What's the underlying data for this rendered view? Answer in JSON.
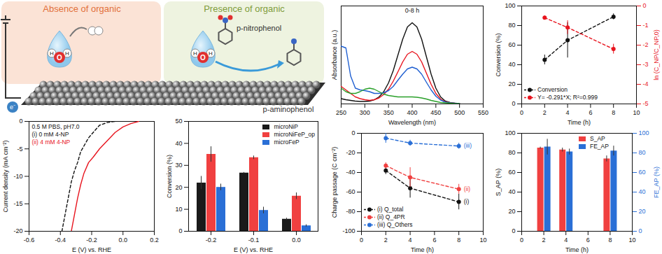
{
  "diagram": {
    "panels": [
      {
        "title": "Absence of organic",
        "color": "#e2703a"
      },
      {
        "title": "Presence of organic",
        "color": "#7f9c3c",
        "reactant": "p-nitrophenol",
        "product": "p-aminophenol"
      }
    ],
    "atoms": [
      "O",
      "H",
      "H"
    ],
    "electron": "e⁻"
  },
  "chart_data": [
    {
      "type": "line",
      "x_label": "E (V) vs. RHE",
      "y_label": "Current density (mA cm⁻²)",
      "annotations": [
        "0.5 M PBS, pH7.0"
      ],
      "x": [
        -0.39,
        -0.37,
        -0.35,
        -0.33,
        -0.31,
        -0.29,
        -0.27,
        -0.25,
        -0.22,
        -0.19,
        -0.15,
        -0.1,
        -0.05,
        0,
        0.05,
        0.1
      ],
      "series": [
        {
          "name": "(i) 0 mM 4-NP",
          "color": "#111111",
          "line_style": "dashed",
          "values": [
            -20,
            -17,
            -14,
            -11,
            -9,
            -7.5,
            -5.5,
            -4.5,
            -3,
            -2,
            -0.7,
            -0.2,
            0,
            null,
            null,
            null
          ]
        },
        {
          "name": "(ii) 4 mM 4-NP",
          "color": "#e8141e",
          "line_style": "solid",
          "values": [
            null,
            null,
            null,
            -20,
            -17,
            -14,
            -11.5,
            -9.5,
            -7.5,
            -6.5,
            -5,
            -3.5,
            -2,
            -1,
            -0.4,
            0
          ]
        }
      ],
      "xlim": [
        -0.6,
        0.2
      ],
      "xticks": [
        -0.6,
        -0.4,
        -0.2,
        {
          "value": 0,
          "label": "0.0"
        },
        0.2
      ],
      "ylim": [
        -20,
        0
      ],
      "yticks": [
        -20,
        -15,
        -10,
        -5,
        0
      ]
    },
    {
      "type": "bar",
      "x_label": "E (V) vs. RHE",
      "y_label": "Conversion (%)",
      "categories": [
        "-0.2",
        "-0.1",
        "0.0"
      ],
      "series": [
        {
          "name": "microNiP",
          "color": "#1a1a1a",
          "values": [
            22,
            26.5,
            5.5
          ],
          "errors": [
            3,
            0.3,
            0.5
          ]
        },
        {
          "name": "microNiFeP_op",
          "color": "#f04040",
          "values": [
            35,
            33.5,
            16
          ],
          "errors": [
            3.5,
            0.8,
            1.5
          ]
        },
        {
          "name": "microFeP",
          "color": "#2a6fd6",
          "values": [
            20,
            9.5,
            2.5
          ],
          "errors": [
            1.5,
            1.5,
            0.5
          ]
        }
      ],
      "ylim": [
        0,
        50
      ],
      "yticks": [
        0,
        10,
        20,
        30,
        40,
        50
      ],
      "legend": "top-right"
    },
    {
      "type": "line",
      "x_label": "Wavelength (nm)",
      "y_label": "Absorbance (a.u.)",
      "annotations": [
        "0-8 h"
      ],
      "x": [
        250,
        260,
        270,
        280,
        290,
        300,
        310,
        320,
        330,
        340,
        350,
        360,
        370,
        380,
        390,
        400,
        410,
        420,
        430,
        440,
        450,
        460,
        470,
        480,
        490,
        500
      ],
      "series": [
        {
          "color": "#111111",
          "values": [
            0.15,
            0.12,
            0.1,
            0.08,
            0.07,
            0.07,
            0.08,
            0.12,
            0.2,
            0.35,
            0.6,
            0.95,
            1.4,
            1.85,
            2.2,
            2.32,
            2.2,
            1.85,
            1.35,
            0.85,
            0.45,
            0.2,
            0.08,
            0.04,
            0.02,
            0.01
          ]
        },
        {
          "color": "#e8141e",
          "values": [
            0.5,
            0.4,
            0.3,
            0.2,
            0.15,
            0.12,
            0.1,
            0.12,
            0.17,
            0.27,
            0.42,
            0.65,
            0.92,
            1.2,
            1.42,
            1.5,
            1.42,
            1.2,
            0.88,
            0.56,
            0.3,
            0.14,
            0.06,
            0.03,
            0.02,
            0.01
          ]
        },
        {
          "color": "#1f5fd1",
          "values": [
            1.65,
            1.6,
            0.8,
            0.45,
            0.4,
            0.38,
            0.35,
            0.3,
            0.3,
            0.32,
            0.38,
            0.5,
            0.68,
            0.85,
            1.0,
            1.05,
            1.0,
            0.85,
            0.62,
            0.4,
            0.22,
            0.11,
            0.05,
            0.03,
            0.02,
            0.01
          ]
        },
        {
          "color": "#2aa02a",
          "values": [
            0.45,
            0.35,
            0.3,
            0.3,
            0.35,
            0.42,
            0.45,
            0.42,
            0.35,
            0.28,
            0.24,
            0.22,
            0.2,
            0.2,
            0.2,
            0.2,
            0.19,
            0.17,
            0.14,
            0.1,
            0.07,
            0.04,
            0.03,
            0.02,
            0.01,
            0.01
          ]
        }
      ],
      "xlim": [
        250,
        550
      ],
      "xticks": [
        250,
        300,
        350,
        400,
        450,
        500,
        550
      ],
      "ylim": [
        0,
        2.8
      ],
      "tick_labels": "x"
    },
    {
      "type": "line",
      "x_label": "Time (h)",
      "y_label": "Conversion (%)",
      "y2_label": "ln (C_NP/C_NP,0)",
      "x": [
        2,
        4,
        8
      ],
      "series": [
        {
          "name": "Conversion",
          "color": "#111111",
          "marker": "circle",
          "line_style": "dashed",
          "values": [
            45,
            65,
            89
          ],
          "errors": [
            5,
            18,
            3
          ]
        },
        {
          "name": "Y= -0.291*X; R²=0.999",
          "color": "#e8141e",
          "marker": "circle",
          "line_style": "dashed",
          "axis": "y2",
          "values": [
            -0.6,
            -1.1,
            -2.2
          ],
          "errors": [
            0.1,
            0.35,
            0.25
          ]
        }
      ],
      "xlim": [
        0,
        10
      ],
      "xticks": [
        0,
        2,
        4,
        6,
        8,
        10
      ],
      "ylim": [
        0,
        100
      ],
      "yticks": [
        0,
        20,
        40,
        60,
        80,
        100
      ],
      "y2lim": [
        -5,
        0
      ],
      "y2ticks": [
        -5,
        -4,
        -3,
        -2,
        -1,
        0
      ],
      "legend": "bottom-left"
    },
    {
      "type": "line",
      "x_label": "Time (h)",
      "y_label": "Charge passage (C cm⁻²)",
      "annotations": [
        "(i)",
        "(ii)",
        "(iii)"
      ],
      "x": [
        2,
        4,
        8
      ],
      "series": [
        {
          "name": "(i) Q_total",
          "color": "#111111",
          "marker": "circle",
          "line_style": "dashed",
          "values": [
            -38,
            -56,
            -70
          ],
          "errors": [
            4,
            10,
            8
          ]
        },
        {
          "name": "(ii) Q_4PR",
          "color": "#f04040",
          "marker": "circle",
          "line_style": "dashed",
          "values": [
            -33,
            -45,
            -57
          ],
          "errors": [
            3,
            10,
            5
          ]
        },
        {
          "name": "(iii) Q_Others",
          "color": "#2a6fd6",
          "marker": "circle",
          "line_style": "dashed",
          "values": [
            -5,
            -10,
            -13
          ],
          "errors": [
            5,
            3,
            3
          ]
        }
      ],
      "xlim": [
        0,
        10
      ],
      "xticks": [
        0,
        2,
        4,
        6,
        8,
        10
      ],
      "ylim": [
        -100,
        0
      ],
      "yticks": [
        -100,
        -80,
        -60,
        -40,
        -20,
        0
      ],
      "legend": "bottom-left"
    },
    {
      "type": "bar",
      "x_label": "Time (h)",
      "y_label": "S_AP (%)",
      "y2_label": "FE_AP (%)",
      "x": [
        2,
        4,
        8
      ],
      "series": [
        {
          "name": "S_AP",
          "color": "#f04040",
          "values": [
            85,
            83,
            74
          ],
          "errors": [
            1,
            2,
            3
          ]
        },
        {
          "name": "FE_AP",
          "color": "#2a6fd6",
          "axis": "y2",
          "values": [
            86,
            81,
            82
          ],
          "errors": [
            8,
            3,
            5
          ]
        }
      ],
      "xlim": [
        0,
        10
      ],
      "xticks": [
        0,
        2,
        4,
        6,
        8,
        10
      ],
      "ylim": [
        0,
        100
      ],
      "yticks": [
        0,
        20,
        40,
        60,
        80,
        100
      ],
      "y2lim": [
        0,
        100
      ],
      "y2ticks": [
        0,
        20,
        40,
        60,
        80,
        100
      ],
      "legend": "top"
    }
  ]
}
